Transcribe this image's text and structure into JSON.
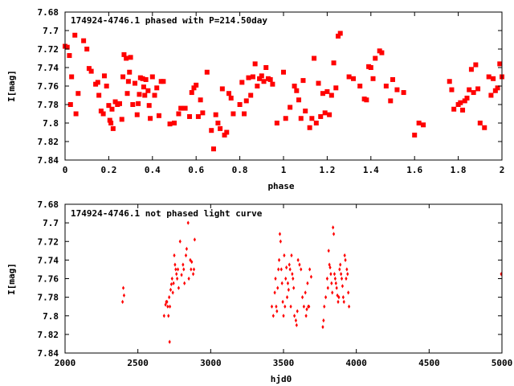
{
  "figure": {
    "title": "",
    "colors": {
      "point": "#ff0000",
      "axis": "#000000",
      "background": "#ffffff"
    }
  },
  "chart_data": [
    {
      "type": "scatter",
      "label": "174924-4746.1 phased with P=214.50day",
      "xlabel": "phase",
      "ylabel": "I[mag]",
      "xlim": [
        0,
        2
      ],
      "ylim": [
        7.84,
        7.68
      ],
      "y_inverted": true,
      "grid": false,
      "xticks": [
        "0",
        "0.2",
        "0.4",
        "0.6",
        "0.8",
        "1",
        "1.2",
        "1.4",
        "1.6",
        "1.8",
        "2"
      ],
      "yticks": [
        "7.68",
        "7.7",
        "7.72",
        "7.74",
        "7.76",
        "7.78",
        "7.8",
        "7.82",
        "7.84"
      ],
      "marker": "filled square",
      "points": [
        [
          0.0,
          7.717
        ],
        [
          0.01,
          7.718
        ],
        [
          0.02,
          7.727
        ],
        [
          0.025,
          7.78
        ],
        [
          0.03,
          7.75
        ],
        [
          0.045,
          7.705
        ],
        [
          0.05,
          7.79
        ],
        [
          0.06,
          7.768
        ],
        [
          0.085,
          7.711
        ],
        [
          0.1,
          7.72
        ],
        [
          0.11,
          7.741
        ],
        [
          0.12,
          7.744
        ],
        [
          0.14,
          7.758
        ],
        [
          0.15,
          7.756
        ],
        [
          0.155,
          7.77
        ],
        [
          0.165,
          7.787
        ],
        [
          0.175,
          7.79
        ],
        [
          0.18,
          7.749
        ],
        [
          0.19,
          7.76
        ],
        [
          0.2,
          7.781
        ],
        [
          0.205,
          7.797
        ],
        [
          0.21,
          7.8
        ],
        [
          0.215,
          7.785
        ],
        [
          0.22,
          7.806
        ],
        [
          0.23,
          7.777
        ],
        [
          0.24,
          7.78
        ],
        [
          0.25,
          7.779
        ],
        [
          0.26,
          7.796
        ],
        [
          0.265,
          7.75
        ],
        [
          0.27,
          7.726
        ],
        [
          0.28,
          7.73
        ],
        [
          0.285,
          7.768
        ],
        [
          0.29,
          7.755
        ],
        [
          0.295,
          7.745
        ],
        [
          0.3,
          7.729
        ],
        [
          0.31,
          7.78
        ],
        [
          0.32,
          7.757
        ],
        [
          0.33,
          7.791
        ],
        [
          0.335,
          7.779
        ],
        [
          0.34,
          7.769
        ],
        [
          0.345,
          7.751
        ],
        [
          0.355,
          7.752
        ],
        [
          0.36,
          7.761
        ],
        [
          0.365,
          7.77
        ],
        [
          0.37,
          7.753
        ],
        [
          0.38,
          7.765
        ],
        [
          0.385,
          7.781
        ],
        [
          0.39,
          7.795
        ],
        [
          0.4,
          7.75
        ],
        [
          0.41,
          7.77
        ],
        [
          0.42,
          7.762
        ],
        [
          0.43,
          7.792
        ],
        [
          0.44,
          7.755
        ],
        [
          0.45,
          7.755
        ],
        [
          0.48,
          7.801
        ],
        [
          0.5,
          7.8
        ],
        [
          0.52,
          7.79
        ],
        [
          0.53,
          7.784
        ],
        [
          0.55,
          7.784
        ],
        [
          0.57,
          7.793
        ],
        [
          0.58,
          7.767
        ],
        [
          0.59,
          7.762
        ],
        [
          0.6,
          7.759
        ],
        [
          0.61,
          7.793
        ],
        [
          0.62,
          7.775
        ],
        [
          0.63,
          7.789
        ],
        [
          0.65,
          7.745
        ],
        [
          0.67,
          7.808
        ],
        [
          0.68,
          7.828
        ],
        [
          0.69,
          7.791
        ],
        [
          0.7,
          7.8
        ],
        [
          0.71,
          7.806
        ],
        [
          0.72,
          7.763
        ],
        [
          0.73,
          7.813
        ],
        [
          0.74,
          7.81
        ],
        [
          0.75,
          7.768
        ],
        [
          0.76,
          7.773
        ],
        [
          0.77,
          7.79
        ],
        [
          0.8,
          7.78
        ],
        [
          0.81,
          7.756
        ],
        [
          0.82,
          7.79
        ],
        [
          0.83,
          7.776
        ],
        [
          0.84,
          7.751
        ],
        [
          0.85,
          7.77
        ],
        [
          0.86,
          7.75
        ],
        [
          0.87,
          7.736
        ],
        [
          0.88,
          7.76
        ],
        [
          0.89,
          7.752
        ],
        [
          0.9,
          7.749
        ],
        [
          0.91,
          7.755
        ],
        [
          0.92,
          7.74
        ],
        [
          0.93,
          7.752
        ],
        [
          0.94,
          7.753
        ],
        [
          0.95,
          7.758
        ],
        [
          0.97,
          7.8
        ],
        [
          1.0,
          7.745
        ],
        [
          1.01,
          7.795
        ],
        [
          1.03,
          7.783
        ],
        [
          1.05,
          7.76
        ],
        [
          1.06,
          7.765
        ],
        [
          1.07,
          7.775
        ],
        [
          1.08,
          7.795
        ],
        [
          1.09,
          7.754
        ],
        [
          1.1,
          7.787
        ],
        [
          1.12,
          7.805
        ],
        [
          1.13,
          7.795
        ],
        [
          1.14,
          7.73
        ],
        [
          1.15,
          7.8
        ],
        [
          1.16,
          7.757
        ],
        [
          1.17,
          7.793
        ],
        [
          1.18,
          7.768
        ],
        [
          1.19,
          7.789
        ],
        [
          1.2,
          7.766
        ],
        [
          1.21,
          7.791
        ],
        [
          1.22,
          7.77
        ],
        [
          1.23,
          7.735
        ],
        [
          1.24,
          7.762
        ],
        [
          1.25,
          7.706
        ],
        [
          1.26,
          7.703
        ],
        [
          1.3,
          7.75
        ],
        [
          1.32,
          7.752
        ],
        [
          1.35,
          7.76
        ],
        [
          1.37,
          7.774
        ],
        [
          1.38,
          7.775
        ],
        [
          1.39,
          7.739
        ],
        [
          1.4,
          7.74
        ],
        [
          1.41,
          7.752
        ],
        [
          1.42,
          7.73
        ],
        [
          1.44,
          7.722
        ],
        [
          1.45,
          7.724
        ],
        [
          1.47,
          7.76
        ],
        [
          1.49,
          7.776
        ],
        [
          1.5,
          7.753
        ],
        [
          1.52,
          7.764
        ],
        [
          1.55,
          7.767
        ],
        [
          1.6,
          7.813
        ],
        [
          1.62,
          7.8
        ],
        [
          1.64,
          7.802
        ],
        [
          1.76,
          7.755
        ],
        [
          1.77,
          7.764
        ],
        [
          1.78,
          7.785
        ],
        [
          1.8,
          7.78
        ],
        [
          1.81,
          7.778
        ],
        [
          1.82,
          7.786
        ],
        [
          1.83,
          7.776
        ],
        [
          1.84,
          7.773
        ],
        [
          1.85,
          7.764
        ],
        [
          1.86,
          7.742
        ],
        [
          1.87,
          7.767
        ],
        [
          1.88,
          7.737
        ],
        [
          1.89,
          7.763
        ],
        [
          1.9,
          7.8
        ],
        [
          1.92,
          7.805
        ],
        [
          1.94,
          7.75
        ],
        [
          1.95,
          7.77
        ],
        [
          1.96,
          7.752
        ],
        [
          1.97,
          7.765
        ],
        [
          1.98,
          7.762
        ],
        [
          1.99,
          7.736
        ],
        [
          2.0,
          7.75
        ]
      ]
    },
    {
      "type": "scatter",
      "label": "174924-4746.1 not phased light curve",
      "xlabel": "hjd0",
      "ylabel": "I[mag]",
      "xlim": [
        2000,
        5000
      ],
      "ylim": [
        7.84,
        7.68
      ],
      "y_inverted": true,
      "grid": false,
      "xticks": [
        "2000",
        "2500",
        "3000",
        "3500",
        "4000",
        "4500",
        "5000"
      ],
      "yticks": [
        "7.68",
        "7.7",
        "7.72",
        "7.74",
        "7.76",
        "7.78",
        "7.8",
        "7.82",
        "7.84"
      ],
      "marker": "small diamond",
      "points": [
        [
          2395,
          7.785
        ],
        [
          2400,
          7.77
        ],
        [
          2405,
          7.778
        ],
        [
          2680,
          7.8
        ],
        [
          2690,
          7.788
        ],
        [
          2695,
          7.785
        ],
        [
          2700,
          7.785
        ],
        [
          2705,
          7.79
        ],
        [
          2710,
          7.8
        ],
        [
          2715,
          7.78
        ],
        [
          2718,
          7.828
        ],
        [
          2720,
          7.79
        ],
        [
          2725,
          7.772
        ],
        [
          2730,
          7.766
        ],
        [
          2735,
          7.76
        ],
        [
          2740,
          7.775
        ],
        [
          2745,
          7.765
        ],
        [
          2750,
          7.735
        ],
        [
          2755,
          7.745
        ],
        [
          2760,
          7.75
        ],
        [
          2765,
          7.755
        ],
        [
          2770,
          7.76
        ],
        [
          2775,
          7.75
        ],
        [
          2780,
          7.77
        ],
        [
          2790,
          7.72
        ],
        [
          2800,
          7.756
        ],
        [
          2810,
          7.745
        ],
        [
          2815,
          7.75
        ],
        [
          2820,
          7.765
        ],
        [
          2830,
          7.735
        ],
        [
          2835,
          7.728
        ],
        [
          2845,
          7.7
        ],
        [
          2850,
          7.76
        ],
        [
          2860,
          7.74
        ],
        [
          2865,
          7.75
        ],
        [
          2870,
          7.742
        ],
        [
          2880,
          7.755
        ],
        [
          2885,
          7.75
        ],
        [
          2890,
          7.718
        ],
        [
          3420,
          7.79
        ],
        [
          3430,
          7.8
        ],
        [
          3440,
          7.775
        ],
        [
          3445,
          7.76
        ],
        [
          3450,
          7.79
        ],
        [
          3455,
          7.795
        ],
        [
          3460,
          7.77
        ],
        [
          3465,
          7.75
        ],
        [
          3470,
          7.74
        ],
        [
          3475,
          7.712
        ],
        [
          3480,
          7.72
        ],
        [
          3485,
          7.75
        ],
        [
          3490,
          7.765
        ],
        [
          3495,
          7.785
        ],
        [
          3500,
          7.8
        ],
        [
          3505,
          7.735
        ],
        [
          3510,
          7.79
        ],
        [
          3515,
          7.76
        ],
        [
          3520,
          7.748
        ],
        [
          3525,
          7.78
        ],
        [
          3530,
          7.765
        ],
        [
          3535,
          7.772
        ],
        [
          3540,
          7.745
        ],
        [
          3545,
          7.75
        ],
        [
          3550,
          7.79
        ],
        [
          3555,
          7.735
        ],
        [
          3560,
          7.755
        ],
        [
          3565,
          7.76
        ],
        [
          3570,
          7.77
        ],
        [
          3575,
          7.8
        ],
        [
          3585,
          7.805
        ],
        [
          3590,
          7.81
        ],
        [
          3595,
          7.795
        ],
        [
          3600,
          7.74
        ],
        [
          3610,
          7.745
        ],
        [
          3620,
          7.75
        ],
        [
          3630,
          7.78
        ],
        [
          3640,
          7.79
        ],
        [
          3650,
          7.775
        ],
        [
          3655,
          7.8
        ],
        [
          3660,
          7.793
        ],
        [
          3665,
          7.765
        ],
        [
          3670,
          7.79
        ],
        [
          3675,
          7.79
        ],
        [
          3680,
          7.75
        ],
        [
          3690,
          7.758
        ],
        [
          3770,
          7.812
        ],
        [
          3775,
          7.805
        ],
        [
          3780,
          7.79
        ],
        [
          3790,
          7.78
        ],
        [
          3800,
          7.76
        ],
        [
          3805,
          7.77
        ],
        [
          3810,
          7.73
        ],
        [
          3815,
          7.745
        ],
        [
          3820,
          7.748
        ],
        [
          3825,
          7.755
        ],
        [
          3830,
          7.765
        ],
        [
          3835,
          7.775
        ],
        [
          3840,
          7.705
        ],
        [
          3845,
          7.712
        ],
        [
          3850,
          7.755
        ],
        [
          3855,
          7.76
        ],
        [
          3860,
          7.765
        ],
        [
          3865,
          7.77
        ],
        [
          3870,
          7.778
        ],
        [
          3875,
          7.785
        ],
        [
          3880,
          7.78
        ],
        [
          3885,
          7.75
        ],
        [
          3890,
          7.745
        ],
        [
          3895,
          7.755
        ],
        [
          3900,
          7.76
        ],
        [
          3905,
          7.768
        ],
        [
          3910,
          7.78
        ],
        [
          3915,
          7.785
        ],
        [
          3920,
          7.735
        ],
        [
          3925,
          7.74
        ],
        [
          3930,
          7.76
        ],
        [
          3935,
          7.75
        ],
        [
          3940,
          7.755
        ],
        [
          3945,
          7.775
        ],
        [
          3950,
          7.79
        ],
        [
          4995,
          7.755
        ]
      ]
    }
  ]
}
